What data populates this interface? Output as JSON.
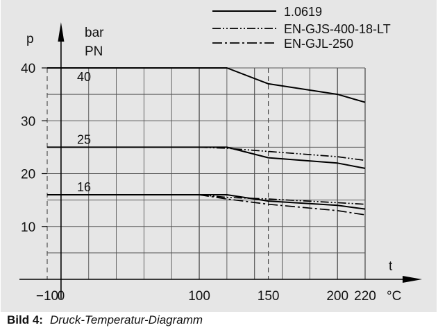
{
  "chart_data": {
    "type": "line",
    "y_axis": {
      "label_symbol": "p",
      "unit": "bar",
      "label_pn": "PN",
      "range": [
        0,
        40
      ],
      "ticks": [
        10,
        20,
        30,
        40
      ]
    },
    "x_axis": {
      "label_symbol": "t",
      "unit": "°C",
      "range": [
        -10,
        220
      ],
      "ticks": [
        -10,
        0,
        100,
        150,
        200,
        220
      ]
    },
    "pn_labels": [
      "40",
      "25",
      "16"
    ],
    "legend": [
      {
        "name": "1.0619",
        "style": "solid"
      },
      {
        "name": "EN-GJS-400-18-LT",
        "style": "dash-dot-dot"
      },
      {
        "name": "EN-GJL-250",
        "style": "dash-dot"
      }
    ],
    "series": [
      {
        "material": "1.0619",
        "pn": "40",
        "style": "solid",
        "x": [
          -10,
          120,
          150,
          200,
          220
        ],
        "y": [
          40,
          40,
          37,
          35,
          33.5
        ]
      },
      {
        "material": "1.0619",
        "pn": "25",
        "style": "solid",
        "x": [
          -10,
          120,
          150,
          200,
          220
        ],
        "y": [
          25,
          25,
          23,
          22,
          21
        ]
      },
      {
        "material": "1.0619",
        "pn": "16",
        "style": "solid",
        "x": [
          -10,
          120,
          150,
          200,
          220
        ],
        "y": [
          16,
          16,
          14.8,
          14,
          13.3
        ]
      },
      {
        "material": "EN-GJS-400-18-LT",
        "pn": "25",
        "style": "dash-dot-dot",
        "x": [
          100,
          120,
          150,
          200,
          220
        ],
        "y": [
          25,
          24.8,
          24.2,
          23.2,
          22.5
        ]
      },
      {
        "material": "EN-GJS-400-18-LT",
        "pn": "16",
        "style": "dash-dot-dot",
        "x": [
          100,
          120,
          150,
          200,
          220
        ],
        "y": [
          16,
          15.5,
          15.2,
          14.5,
          14.2
        ]
      },
      {
        "material": "EN-GJL-250",
        "pn": "16",
        "style": "dash-dot",
        "x": [
          100,
          120,
          150,
          200,
          220
        ],
        "y": [
          16,
          15.2,
          14.2,
          13,
          12.2
        ]
      }
    ],
    "grid": true
  },
  "caption": {
    "label": "Bild 4:",
    "text": "Druck-Temperatur-Diagramm"
  }
}
